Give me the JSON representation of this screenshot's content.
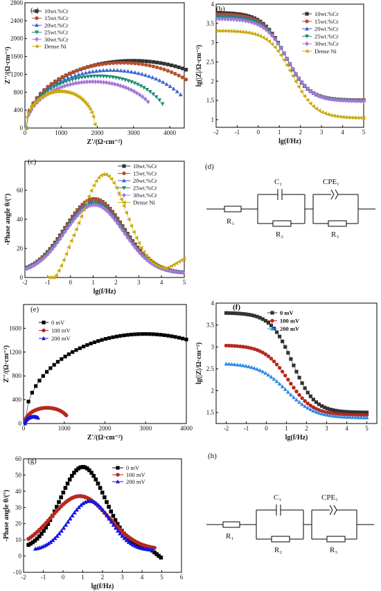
{
  "figure": {
    "panels": {
      "a": {
        "label": "(a)"
      },
      "b": {
        "label": "(b)"
      },
      "c": {
        "label": "(c)"
      },
      "d": {
        "label": "(d)"
      },
      "e": {
        "label": "(e)"
      },
      "f": {
        "label": "(f)"
      },
      "g": {
        "label": "(g)"
      },
      "h": {
        "label": "(h)"
      }
    }
  },
  "circuits": [
    {
      "panel": "d",
      "labels": [
        "R₁",
        "C₁",
        "R₂",
        "CPE₁",
        "R₃"
      ]
    },
    {
      "panel": "h",
      "labels": [
        "R₁",
        "C₁",
        "R₂",
        "CPE₁",
        "R₃"
      ]
    }
  ],
  "colors": {
    "black": "#333333",
    "brown": "#b5502b",
    "blue": "#3a63d6",
    "green": "#1e8c74",
    "violet": "#a678d9",
    "gold": "#c9a90a",
    "blue2": "#1515e0",
    "red2": "#b8281e",
    "sky2": "#2f8be6"
  },
  "chart_data": [
    {
      "panel": "a",
      "type": "scatter",
      "xlabel": "Z'/(Ω·cm⁻²)",
      "ylabel": "Z''/(Ω·cm⁻²)",
      "xlim": [
        0,
        4400
      ],
      "ylim": [
        0,
        2800
      ],
      "xticks": [
        0,
        1000,
        2000,
        3000,
        4000
      ],
      "yticks": [
        0,
        400,
        800,
        1200,
        1600,
        2000,
        2400,
        2800
      ],
      "legend_position": "top-left",
      "series": [
        {
          "name": "10wt.%Cr",
          "color": "#333333",
          "marker": "square",
          "arc": {
            "rs": 30,
            "r": 5900,
            "depress": 0.51,
            "zmax": 4450
          }
        },
        {
          "name": "15wt.%Cr",
          "color": "#b5502b",
          "marker": "circle",
          "arc": {
            "rs": 30,
            "r": 5300,
            "depress": 0.55,
            "zmax": 4450
          }
        },
        {
          "name": "20wt.%Cr",
          "color": "#3a63d6",
          "marker": "triangle-up",
          "arc": {
            "rs": 30,
            "r": 4700,
            "depress": 0.55,
            "zmax": 4300
          }
        },
        {
          "name": "25wt.%Cr",
          "color": "#1e8c74",
          "marker": "triangle-down",
          "arc": {
            "rs": 30,
            "r": 4000,
            "depress": 0.58,
            "zmax": 3800
          }
        },
        {
          "name": "30wt.%Cr",
          "color": "#a678d9",
          "marker": "diamond",
          "arc": {
            "rs": 30,
            "r": 3700,
            "depress": 0.56,
            "zmax": 3400
          }
        },
        {
          "name": "Dense Ni",
          "color": "#c9a90a",
          "marker": "triangle-left",
          "arc": {
            "rs": 10,
            "r": 1930,
            "depress": 0.85,
            "zmax": 1935
          }
        }
      ]
    },
    {
      "panel": "b",
      "type": "scatter",
      "xlabel": "lg(f/Hz)",
      "ylabel": "lg(|Z|/Ω·cm⁻²)",
      "xlim": [
        -2,
        5
      ],
      "ylim": [
        0.8,
        4.0
      ],
      "xticks": [
        -2,
        -1,
        0,
        1,
        2,
        3,
        4,
        5
      ],
      "yticks": [
        1.0,
        1.5,
        2.0,
        2.5,
        3.0,
        3.5,
        4.0
      ],
      "legend_position": "top-right",
      "series": [
        {
          "name": "10wt.%Cr",
          "color": "#333333",
          "marker": "square",
          "bode": {
            "hi": 3.78,
            "lo": 1.5,
            "mid": 1.3,
            "w": 0.55
          }
        },
        {
          "name": "15wt.%Cr",
          "color": "#b5502b",
          "marker": "circle",
          "bode": {
            "hi": 3.74,
            "lo": 1.5,
            "mid": 1.32,
            "w": 0.55
          }
        },
        {
          "name": "20wt.%Cr",
          "color": "#3a63d6",
          "marker": "triangle-up",
          "bode": {
            "hi": 3.7,
            "lo": 1.49,
            "mid": 1.35,
            "w": 0.55
          }
        },
        {
          "name": "25wt.%Cr",
          "color": "#1e8c74",
          "marker": "triangle-down",
          "bode": {
            "hi": 3.66,
            "lo": 1.49,
            "mid": 1.37,
            "w": 0.55
          }
        },
        {
          "name": "30wt.%Cr",
          "color": "#a678d9",
          "marker": "diamond",
          "bode": {
            "hi": 3.62,
            "lo": 1.48,
            "mid": 1.4,
            "w": 0.55
          }
        },
        {
          "name": "Dense Ni",
          "color": "#c9a90a",
          "marker": "triangle-left",
          "bode": {
            "hi": 3.31,
            "lo": 1.04,
            "mid": 1.6,
            "w": 0.55
          }
        }
      ]
    },
    {
      "panel": "c",
      "type": "scatter",
      "xlabel": "lg(f/Hz)",
      "ylabel": "-Phase angle θ/(°)",
      "xlim": [
        -2,
        5
      ],
      "ylim": [
        0,
        80
      ],
      "xticks": [
        -2,
        -1,
        0,
        1,
        2,
        3,
        4,
        5
      ],
      "yticks": [
        0,
        20,
        40,
        60
      ],
      "legend_position": "top-right",
      "series": [
        {
          "name": "10wt.%Cr",
          "color": "#333333",
          "marker": "square",
          "peak": {
            "base": 3,
            "amp": 51,
            "mu": 1.05,
            "s": 1.3,
            "x0": -2,
            "x1": 5,
            "tail": 0
          }
        },
        {
          "name": "15wt.%Cr",
          "color": "#b5502b",
          "marker": "circle",
          "peak": {
            "base": 3,
            "amp": 51,
            "mu": 1.05,
            "s": 1.28,
            "x0": -2,
            "x1": 5,
            "tail": 0
          }
        },
        {
          "name": "20wt.%Cr",
          "color": "#3a63d6",
          "marker": "triangle-up",
          "peak": {
            "base": 3,
            "amp": 49,
            "mu": 1.05,
            "s": 1.28,
            "x0": -2,
            "x1": 5,
            "tail": 0
          }
        },
        {
          "name": "25wt.%Cr",
          "color": "#1e8c74",
          "marker": "triangle-down",
          "peak": {
            "base": 3,
            "amp": 48,
            "mu": 1.05,
            "s": 1.28,
            "x0": -2,
            "x1": 5,
            "tail": 0
          }
        },
        {
          "name": "30wt.%Cr",
          "color": "#a678d9",
          "marker": "diamond",
          "peak": {
            "base": 3,
            "amp": 47,
            "mu": 1.05,
            "s": 1.28,
            "x0": -2,
            "x1": 5,
            "tail": 0
          }
        },
        {
          "name": "Dense Ni",
          "color": "#c9a90a",
          "marker": "triangle-left",
          "peak": {
            "base": 5,
            "amp": 66,
            "mu": 1.5,
            "s": 0.95,
            "x0": -0.95,
            "x1": 5,
            "tail": 1
          }
        }
      ]
    },
    {
      "panel": "e",
      "type": "scatter",
      "xlabel": "Z'/(Ω·cm⁻²)",
      "ylabel": "Z''/(Ω·cm⁻²)",
      "xlim": [
        0,
        4000
      ],
      "ylim": [
        0,
        2000
      ],
      "xticks": [
        0,
        1000,
        2000,
        3000,
        4000
      ],
      "yticks": [
        0,
        400,
        800,
        1200,
        1600
      ],
      "legend_position": "top-left",
      "series": [
        {
          "name": "0   mV",
          "color": "#000000",
          "marker": "square",
          "arc": {
            "rs": 30,
            "r": 5900,
            "depress": 0.51,
            "zmax": 4000
          }
        },
        {
          "name": "100   mV",
          "color": "#b8281e",
          "marker": "circle",
          "arc": {
            "rs": 30,
            "r": 1100,
            "depress": 0.48,
            "zmax": 1050
          }
        },
        {
          "name": "200   mV",
          "color": "#1515e0",
          "marker": "triangle-up",
          "arc": {
            "rs": 30,
            "r": 430,
            "depress": 0.52,
            "zmax": 360
          }
        }
      ]
    },
    {
      "panel": "f",
      "type": "scatter",
      "xlabel": "lg(f/Hz)",
      "ylabel": "lg(|Z|/Ω·cm⁻²)",
      "xlim": [
        -2.5,
        5.5
      ],
      "ylim": [
        1.25,
        4.0
      ],
      "xticks": [
        -2,
        -1,
        0,
        1,
        2,
        3,
        4,
        5
      ],
      "yticks": [
        1.5,
        2.0,
        2.5,
        3.0,
        3.5,
        4.0
      ],
      "legend_position": "top-left",
      "series": [
        {
          "name": "0 mV",
          "color": "#333333",
          "marker": "square",
          "bode": {
            "hi": 3.78,
            "lo": 1.5,
            "mid": 1.3,
            "w": 0.55
          }
        },
        {
          "name": "100 mV",
          "color": "#b8281e",
          "marker": "circle",
          "bode": {
            "hi": 3.04,
            "lo": 1.44,
            "mid": 1.1,
            "w": 0.6
          }
        },
        {
          "name": "200 mV",
          "color": "#2f8be6",
          "marker": "triangle-up",
          "bode": {
            "hi": 2.63,
            "lo": 1.38,
            "mid": 1.0,
            "w": 0.7
          }
        }
      ]
    },
    {
      "panel": "g",
      "type": "scatter",
      "xlabel": "lg(f/Hz)",
      "ylabel": "-Phase angle θ/(°)",
      "xlim": [
        -2,
        6
      ],
      "ylim": [
        -10,
        60
      ],
      "xticks": [
        -2,
        -1,
        0,
        1,
        2,
        3,
        4,
        5,
        6
      ],
      "yticks": [
        -10,
        0,
        10,
        20,
        30,
        40,
        50,
        60
      ],
      "legend_position": "top-right",
      "series": [
        {
          "name": "0   mV",
          "color": "#000000",
          "marker": "square",
          "peak": {
            "base": 4,
            "amp": 51,
            "mu": 1.0,
            "s": 1.15,
            "x0": -1.75,
            "x1": 5.0,
            "tail": 2
          }
        },
        {
          "name": "100   mV",
          "color": "#b8281e",
          "marker": "circle",
          "peak": {
            "base": 4,
            "amp": 33,
            "mu": 0.85,
            "s": 1.45,
            "x0": -1.75,
            "x1": 4.7,
            "tail": 0
          }
        },
        {
          "name": "200   mV",
          "color": "#1515e0",
          "marker": "triangle-up",
          "peak": {
            "base": 3.5,
            "amp": 30.5,
            "mu": 1.35,
            "s": 1.05,
            "x0": -1.4,
            "x1": 4.6,
            "tail": 0
          }
        }
      ]
    }
  ]
}
